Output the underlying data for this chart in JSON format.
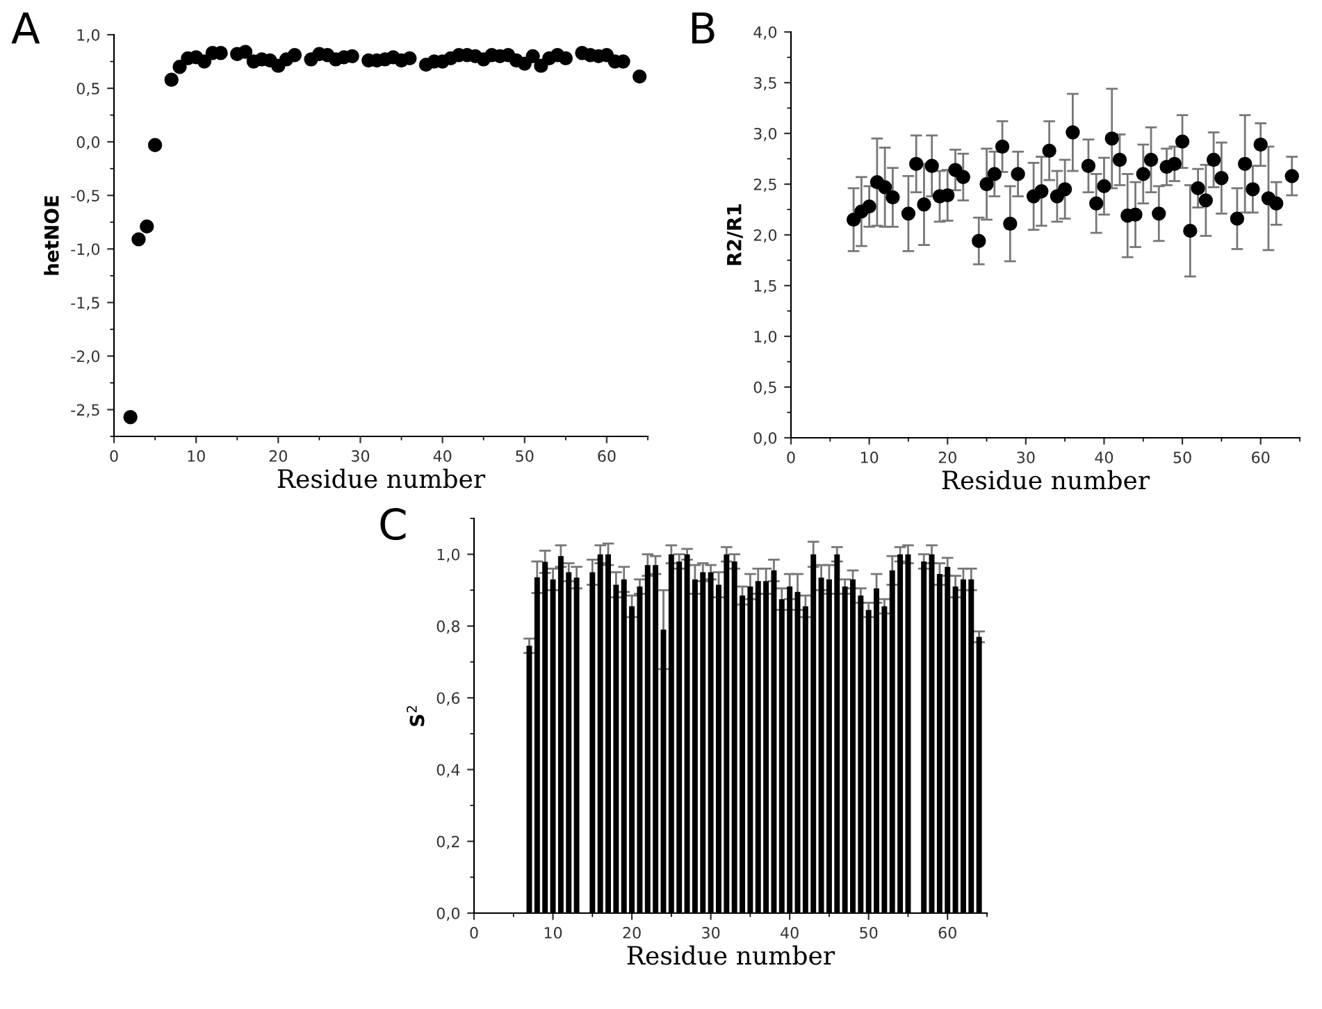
{
  "chart_data": [
    {
      "type": "scatter",
      "annotations": [
        "A"
      ],
      "xlabel": "Residue number",
      "ylabel": "hetNOE",
      "marker": "circle",
      "grid": false,
      "x": [
        2,
        3,
        4,
        5,
        7,
        8,
        9,
        10,
        11,
        12,
        13,
        15,
        16,
        17,
        18,
        19,
        20,
        21,
        22,
        24,
        25,
        26,
        27,
        28,
        29,
        31,
        32,
        33,
        34,
        35,
        36,
        38,
        39,
        40,
        41,
        42,
        43,
        44,
        45,
        46,
        47,
        48,
        49,
        50,
        51,
        52,
        53,
        54,
        55,
        57,
        58,
        59,
        60,
        61,
        62,
        64
      ],
      "series": [
        {
          "color": "#000000",
          "values": [
            -2.57,
            -0.91,
            -0.79,
            -0.03,
            0.58,
            0.7,
            0.78,
            0.79,
            0.75,
            0.83,
            0.83,
            0.82,
            0.84,
            0.75,
            0.77,
            0.76,
            0.71,
            0.77,
            0.81,
            0.77,
            0.82,
            0.81,
            0.77,
            0.79,
            0.8,
            0.76,
            0.76,
            0.77,
            0.79,
            0.76,
            0.78,
            0.72,
            0.75,
            0.75,
            0.78,
            0.81,
            0.81,
            0.8,
            0.77,
            0.81,
            0.8,
            0.81,
            0.76,
            0.73,
            0.8,
            0.71,
            0.78,
            0.81,
            0.78,
            0.83,
            0.81,
            0.8,
            0.81,
            0.75,
            0.75,
            0.61
          ]
        }
      ],
      "xlim": [
        0,
        65
      ],
      "xticks": [
        0,
        10,
        20,
        30,
        40,
        50,
        60
      ],
      "ylim": [
        -2.75,
        1.0
      ],
      "yticks": [
        {
          "value": -2.5,
          "label": "-2,5"
        },
        {
          "value": -2.0,
          "label": "-2,0"
        },
        {
          "value": -1.5,
          "label": "-1,5"
        },
        {
          "value": -1.0,
          "label": "-1,0"
        },
        {
          "value": -0.5,
          "label": "-0,5"
        },
        {
          "value": 0.0,
          "label": "0,0"
        },
        {
          "value": 0.5,
          "label": "0,5"
        },
        {
          "value": 1.0,
          "label": "1,0"
        }
      ]
    },
    {
      "type": "scatter",
      "annotations": [
        "B"
      ],
      "xlabel": "Residue number",
      "ylabel": "R2/R1",
      "marker": "circle",
      "grid": false,
      "x": [
        8,
        9,
        10,
        11,
        12,
        13,
        15,
        16,
        17,
        18,
        19,
        20,
        21,
        22,
        24,
        25,
        26,
        27,
        28,
        29,
        31,
        32,
        33,
        34,
        35,
        36,
        38,
        39,
        40,
        41,
        42,
        43,
        44,
        45,
        46,
        47,
        48,
        49,
        50,
        51,
        52,
        53,
        54,
        55,
        57,
        58,
        59,
        60,
        61,
        62,
        64
      ],
      "series": [
        {
          "color": "#000000",
          "values": [
            2.15,
            2.23,
            2.28,
            2.52,
            2.47,
            2.37,
            2.21,
            2.7,
            2.3,
            2.68,
            2.38,
            2.39,
            2.64,
            2.57,
            1.94,
            2.5,
            2.6,
            2.87,
            2.11,
            2.6,
            2.38,
            2.43,
            2.83,
            2.38,
            2.45,
            3.01,
            2.68,
            2.31,
            2.48,
            2.95,
            2.74,
            2.19,
            2.2,
            2.6,
            2.74,
            2.21,
            2.67,
            2.7,
            2.92,
            2.04,
            2.46,
            2.34,
            2.74,
            2.56,
            2.16,
            2.7,
            2.45,
            2.89,
            2.36,
            2.31,
            2.58
          ],
          "errors": [
            0.31,
            0.34,
            0.2,
            0.43,
            0.39,
            0.29,
            0.37,
            0.28,
            0.4,
            0.3,
            0.25,
            0.25,
            0.2,
            0.23,
            0.23,
            0.35,
            0.22,
            0.25,
            0.37,
            0.22,
            0.33,
            0.34,
            0.29,
            0.25,
            0.29,
            0.38,
            0.26,
            0.29,
            0.28,
            0.49,
            0.25,
            0.41,
            0.32,
            0.29,
            0.32,
            0.27,
            0.18,
            0.17,
            0.26,
            0.45,
            0.19,
            0.35,
            0.27,
            0.35,
            0.3,
            0.48,
            0.23,
            0.21,
            0.51,
            0.21,
            0.19
          ]
        }
      ],
      "xlim": [
        0,
        65
      ],
      "xticks": [
        0,
        10,
        20,
        30,
        40,
        50,
        60
      ],
      "ylim": [
        0.0,
        4.0
      ],
      "yticks": [
        {
          "value": 0.0,
          "label": "0,0"
        },
        {
          "value": 0.5,
          "label": "0,5"
        },
        {
          "value": 1.0,
          "label": "1,0"
        },
        {
          "value": 1.5,
          "label": "1,5"
        },
        {
          "value": 2.0,
          "label": "2,0"
        },
        {
          "value": 2.5,
          "label": "2,5"
        },
        {
          "value": 3.0,
          "label": "3,0"
        },
        {
          "value": 3.5,
          "label": "3,5"
        },
        {
          "value": 4.0,
          "label": "4,0"
        }
      ]
    },
    {
      "type": "bar",
      "annotations": [
        "C"
      ],
      "xlabel": "Residue number",
      "ylabel": "S$^{2}$",
      "grid": false,
      "x": [
        7,
        8,
        9,
        10,
        11,
        12,
        13,
        15,
        16,
        17,
        18,
        19,
        20,
        21,
        22,
        23,
        24,
        25,
        26,
        27,
        28,
        29,
        30,
        31,
        32,
        33,
        34,
        35,
        36,
        37,
        38,
        39,
        40,
        41,
        42,
        43,
        44,
        45,
        46,
        47,
        48,
        49,
        50,
        51,
        52,
        53,
        54,
        55,
        57,
        58,
        59,
        60,
        61,
        62,
        63,
        64
      ],
      "series": [
        {
          "color": "#000000",
          "values": [
            0.745,
            0.936,
            0.979,
            0.93,
            0.995,
            0.95,
            0.935,
            0.95,
            1.0,
            1.0,
            0.915,
            0.93,
            0.855,
            0.91,
            0.97,
            0.97,
            0.79,
            1.0,
            0.98,
            1.0,
            0.93,
            0.95,
            0.95,
            0.915,
            1.0,
            0.98,
            0.885,
            0.91,
            0.925,
            0.925,
            0.955,
            0.875,
            0.91,
            0.895,
            0.855,
            1.0,
            0.935,
            0.93,
            1.0,
            0.91,
            0.93,
            0.885,
            0.845,
            0.905,
            0.855,
            0.955,
            1.0,
            1.0,
            0.98,
            1.0,
            0.945,
            0.965,
            0.91,
            0.93,
            0.93,
            0.77
          ],
          "errors": [
            0.02,
            0.044,
            0.031,
            0.03,
            0.03,
            0.025,
            0.03,
            0.035,
            0.025,
            0.03,
            0.035,
            0.035,
            0.03,
            0.02,
            0.03,
            0.025,
            0.11,
            0.025,
            0.02,
            0.015,
            0.04,
            0.025,
            0.02,
            0.035,
            0.02,
            0.02,
            0.025,
            0.035,
            0.035,
            0.035,
            0.03,
            0.03,
            0.035,
            0.05,
            0.03,
            0.035,
            0.035,
            0.04,
            0.02,
            0.02,
            0.025,
            0.02,
            0.02,
            0.04,
            0.02,
            0.04,
            0.02,
            0.025,
            0.02,
            0.025,
            0.03,
            0.025,
            0.03,
            0.03,
            0.03,
            0.015
          ]
        }
      ],
      "xlim": [
        0,
        65
      ],
      "xticks": [
        0,
        10,
        20,
        30,
        40,
        50,
        60
      ],
      "ylim": [
        0.0,
        1.1
      ],
      "yticks": [
        {
          "value": 0.0,
          "label": "0,0"
        },
        {
          "value": 0.2,
          "label": "0,2"
        },
        {
          "value": 0.4,
          "label": "0,4"
        },
        {
          "value": 0.6,
          "label": "0,6"
        },
        {
          "value": 0.8,
          "label": "0,8"
        },
        {
          "value": 1.0,
          "label": "1,0"
        }
      ]
    }
  ]
}
